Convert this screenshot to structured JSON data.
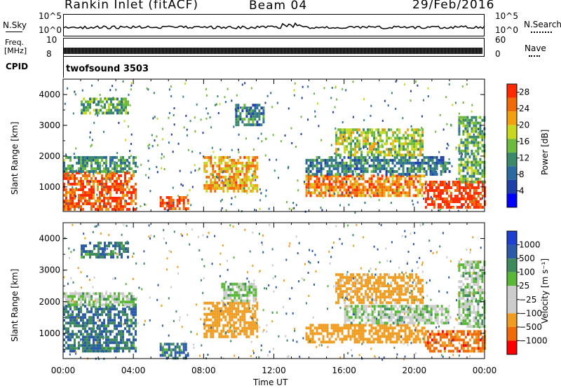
{
  "header": {
    "station": "Rankin Inlet (fitACF)",
    "beam": "Beam 04",
    "date": "29/Feb/2016"
  },
  "top_panels": {
    "nsky_label": "N.Sky",
    "nsky_ticks": [
      "10^5",
      "10^0"
    ],
    "nsearch_label": "N.Search",
    "freq_label_1": "Freq.",
    "freq_label_2": "[MHz]",
    "freq_ticks": [
      "10",
      "8"
    ],
    "nave_ticks": [
      "60",
      "0"
    ],
    "nave_label": "Nave",
    "cpid_label": "CPID",
    "cpid_value": "twofsound 3503"
  },
  "colors": {
    "power": [
      "#0000ff",
      "#1f3fa8",
      "#2a6aa0",
      "#3a8a6a",
      "#6dbb3c",
      "#c8d820",
      "#f2a010",
      "#f06a08",
      "#ff2a00"
    ],
    "velocity": [
      "#ff0000",
      "#f06a08",
      "#ef9c20",
      "#cccccc",
      "#cccccc",
      "#5ab838",
      "#3f8a5c",
      "#2a5aa8",
      "#1f3fd0"
    ]
  },
  "chart_data": [
    {
      "type": "heatmap",
      "name": "power-panel",
      "ylabel": "Slant Range [km]",
      "yticks": [
        "1000",
        "2000",
        "3000",
        "4000"
      ],
      "ylim": [
        200,
        4500
      ],
      "colorbar_label": "Power [dB]",
      "colorbar_ticks": [
        "4",
        "8",
        "12",
        "16",
        "20",
        "24",
        "28"
      ],
      "colorbar_range": [
        0,
        30
      ],
      "regions": [
        {
          "t0": 0.0,
          "t1": 4.1,
          "r0": 300,
          "r1": 1500,
          "value": 26
        },
        {
          "t0": 0.0,
          "t1": 4.1,
          "r0": 1500,
          "r1": 2000,
          "value": 12
        },
        {
          "t0": 1.0,
          "t1": 3.7,
          "r0": 3400,
          "r1": 3900,
          "value": 14
        },
        {
          "t0": 5.5,
          "t1": 7.1,
          "r0": 250,
          "r1": 700,
          "value": 27
        },
        {
          "t0": 8.0,
          "t1": 11.0,
          "r0": 900,
          "r1": 2000,
          "value": 22
        },
        {
          "t0": 9.8,
          "t1": 11.4,
          "r0": 3000,
          "r1": 3700,
          "value": 10
        },
        {
          "t0": 13.8,
          "t1": 20.6,
          "r0": 700,
          "r1": 1400,
          "value": 24
        },
        {
          "t0": 13.8,
          "t1": 22.0,
          "r0": 1400,
          "r1": 2000,
          "value": 10
        },
        {
          "t0": 15.5,
          "t1": 20.5,
          "r0": 2000,
          "r1": 2900,
          "value": 17
        },
        {
          "t0": 20.6,
          "t1": 24.0,
          "r0": 300,
          "r1": 1200,
          "value": 29
        },
        {
          "t0": 22.5,
          "t1": 24.0,
          "r0": 1200,
          "r1": 3300,
          "value": 14
        }
      ]
    },
    {
      "type": "heatmap",
      "name": "velocity-panel",
      "ylabel": "Slant Range [km]",
      "yticks": [
        "1000",
        "2000",
        "3000",
        "4000"
      ],
      "ylim": [
        200,
        4500
      ],
      "xlabel": "Time UT",
      "xticks": [
        "00:00",
        "04:00",
        "08:00",
        "12:00",
        "16:00",
        "20:00",
        "00:00"
      ],
      "xlim": [
        0,
        24
      ],
      "colorbar_label": "Velocity [m s⁻¹]",
      "colorbar_ticks": [
        "1000",
        "500",
        "100",
        "25",
        "−25",
        "−100",
        "−500",
        "−1000"
      ],
      "regions": [
        {
          "t0": 0.0,
          "t1": 4.1,
          "r0": 400,
          "r1": 1900,
          "value": 100
        },
        {
          "t0": 0.0,
          "t1": 4.1,
          "r0": 1900,
          "r1": 2300,
          "value": 0
        },
        {
          "t0": 1.0,
          "t1": 3.7,
          "r0": 3400,
          "r1": 3900,
          "value": 100
        },
        {
          "t0": 5.5,
          "t1": 7.1,
          "r0": 250,
          "r1": 700,
          "value": 100
        },
        {
          "t0": 8.0,
          "t1": 11.0,
          "r0": 900,
          "r1": 2000,
          "value": -300
        },
        {
          "t0": 9.0,
          "t1": 11.0,
          "r0": 2000,
          "r1": 2600,
          "value": 0
        },
        {
          "t0": 13.8,
          "t1": 20.6,
          "r0": 700,
          "r1": 1300,
          "value": -300
        },
        {
          "t0": 16.0,
          "t1": 22.0,
          "r0": 1300,
          "r1": 1900,
          "value": 0
        },
        {
          "t0": 15.5,
          "t1": 20.5,
          "r0": 2000,
          "r1": 2900,
          "value": -200
        },
        {
          "t0": 20.6,
          "t1": 24.0,
          "r0": 400,
          "r1": 1100,
          "value": -700
        },
        {
          "t0": 22.5,
          "t1": 24.0,
          "r0": 1200,
          "r1": 3300,
          "value": 0
        }
      ]
    }
  ]
}
